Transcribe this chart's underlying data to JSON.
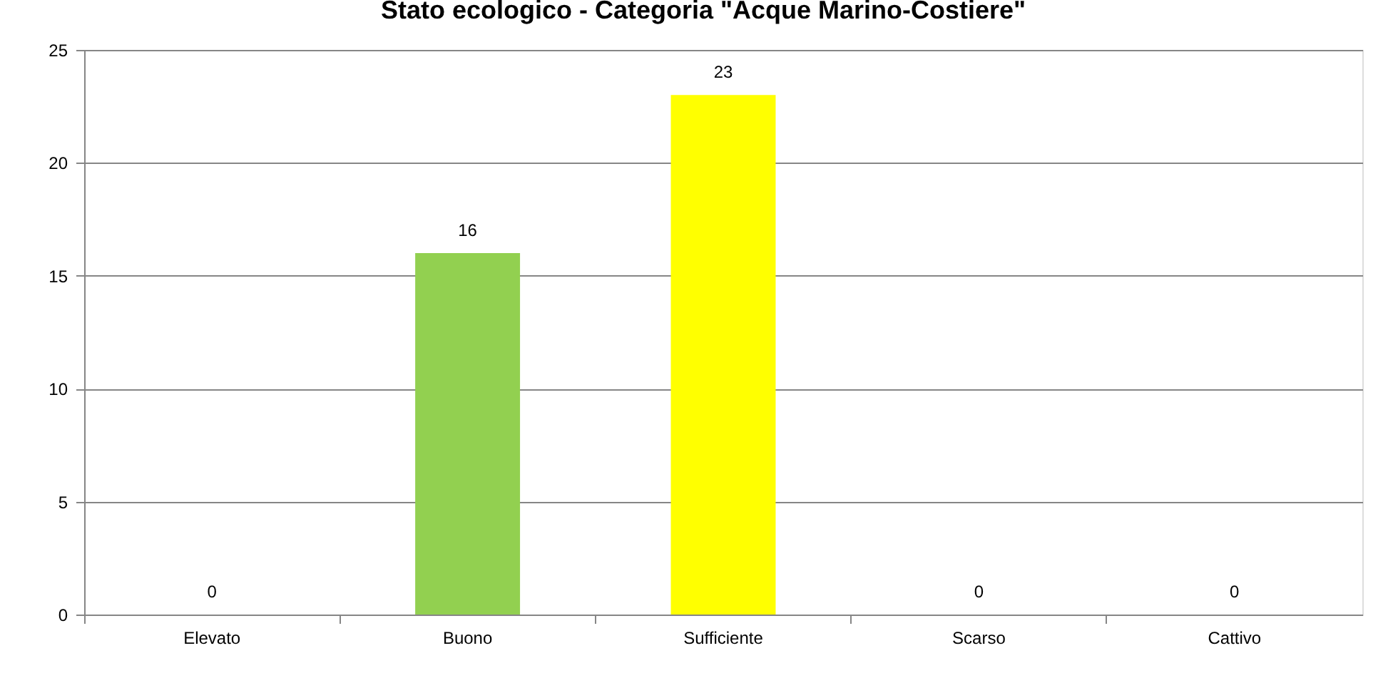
{
  "chart_data": {
    "type": "bar",
    "title": "Stato ecologico - Categoria \"Acque Marino-Costiere\"",
    "categories": [
      "Elevato",
      "Buono",
      "Sufficiente",
      "Scarso",
      "Cattivo"
    ],
    "values": [
      0,
      16,
      23,
      0,
      0
    ],
    "colors": [
      null,
      "#92d050",
      "#ffff00",
      null,
      null
    ],
    "ylim": [
      0,
      25
    ],
    "yticks": [
      0,
      5,
      10,
      15,
      20,
      25
    ],
    "grid": "y",
    "data_labels": true
  }
}
